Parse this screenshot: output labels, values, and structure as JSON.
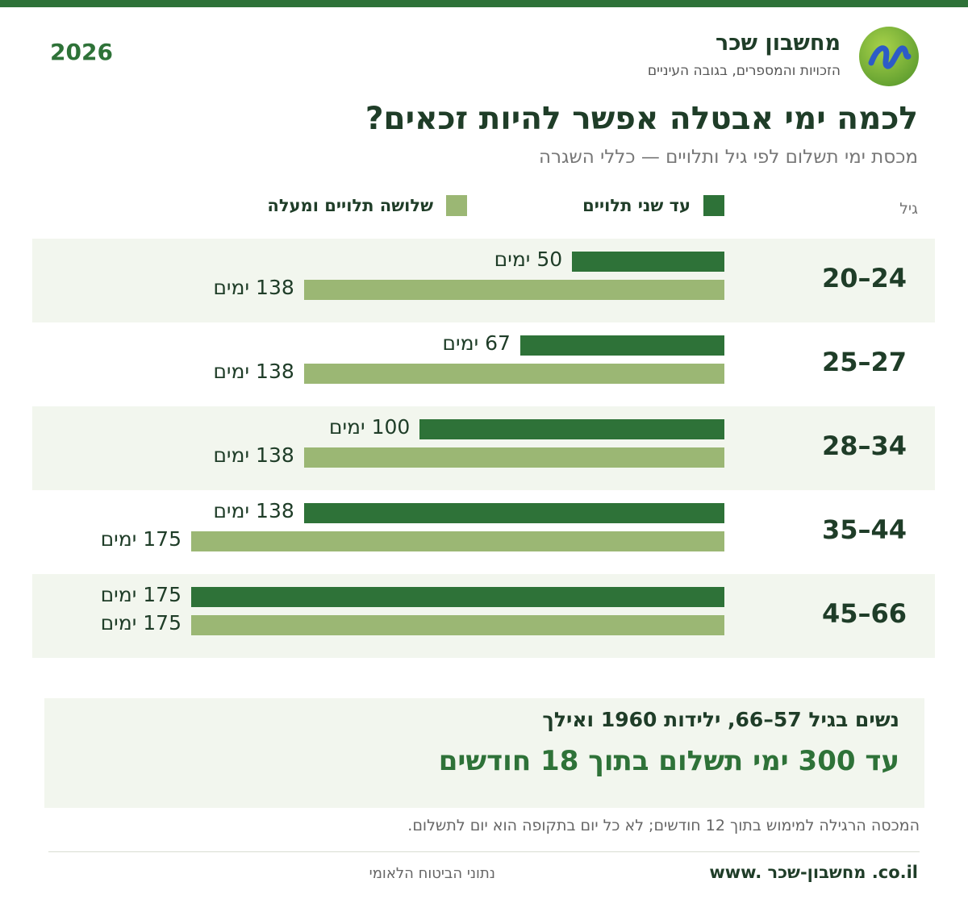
{
  "header": {
    "year": "2026",
    "brand_name": "מחשבון שכר",
    "brand_tagline": "הזכויות והמספרים, בגובה העיניים",
    "logo_icon": "w-wave-logo-icon"
  },
  "title": "לכמה ימי אבטלה אפשר להיות זכאים?",
  "subtitle": "מכסת ימי תשלום לפי גיל ותלויים — כללי השגרה",
  "colors": {
    "dark_green": "#2e7238",
    "light_green": "#9bb774",
    "row_shade": "#f2f6ee",
    "text": "#1f3d28"
  },
  "chart_data": {
    "type": "bar",
    "orientation": "horizontal",
    "category_axis_label": "גיל",
    "categories": [
      "20–24",
      "25–27",
      "28–34",
      "35–44",
      "45–66"
    ],
    "series": [
      {
        "name": "עד שני תלויים",
        "values": [
          50,
          67,
          100,
          138,
          175
        ],
        "labels": [
          "50 ימים",
          "67 ימים",
          "100 ימים",
          "138 ימים",
          "175 ימים"
        ]
      },
      {
        "name": "שלושה תלויים ומעלה",
        "values": [
          138,
          138,
          138,
          175,
          175
        ],
        "labels": [
          "138 ימים",
          "138 ימים",
          "138 ימים",
          "175 ימים",
          "175 ימים"
        ]
      }
    ],
    "xlim": [
      0,
      175
    ],
    "legend_position": "top",
    "grid": false
  },
  "note": {
    "line1": "נשים בגיל 57–66, ילידות 1960 ואילך",
    "line2": "עד 300 ימי תשלום בתוך 18 חודשים"
  },
  "footnote": "המכסה הרגילה למימוש בתוך 12 חודשים; לא כל יום בתקופה הוא יום לתשלום.",
  "footer": {
    "site": "www. מחשבון-שכר .co.il",
    "source": "נתוני הביטוח הלאומי"
  }
}
